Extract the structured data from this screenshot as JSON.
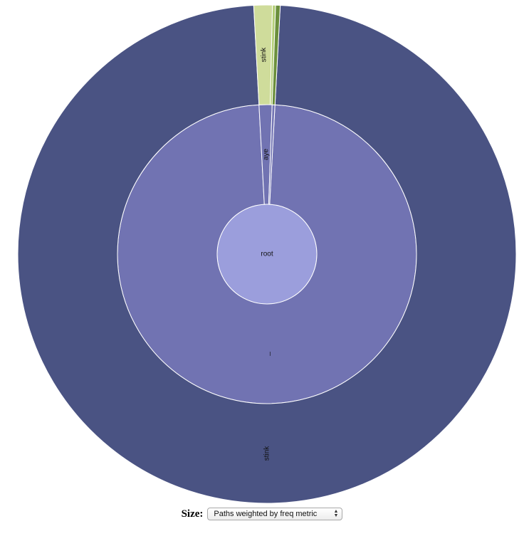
{
  "chart_data": {
    "type": "sunburst",
    "root": {
      "name": "root",
      "color": "#9b9edc",
      "children": [
        {
          "name": "_",
          "value": 0.983,
          "color": "#7173b2",
          "children": [
            {
              "name": "stink",
              "value": 0.983,
              "color": "#4a5383",
              "label": "stink"
            }
          ]
        },
        {
          "name": "aye",
          "value": 0.014,
          "color": "#7173b2",
          "children": [
            {
              "name": "stink",
              "value": 0.012,
              "color": "#cfdc9b",
              "label": "stink"
            },
            {
              "name": "",
              "value": 0.002,
              "color": "#b4cf78",
              "label": ""
            }
          ]
        },
        {
          "name": "",
          "value": 0.003,
          "color": "#7173b2",
          "children": [
            {
              "name": "",
              "value": 0.003,
              "color": "#6b8f3c",
              "label": ""
            }
          ]
        }
      ]
    }
  },
  "controls": {
    "size_label": "Size:",
    "size_select": {
      "selected": "Paths weighted by freq metric"
    }
  }
}
